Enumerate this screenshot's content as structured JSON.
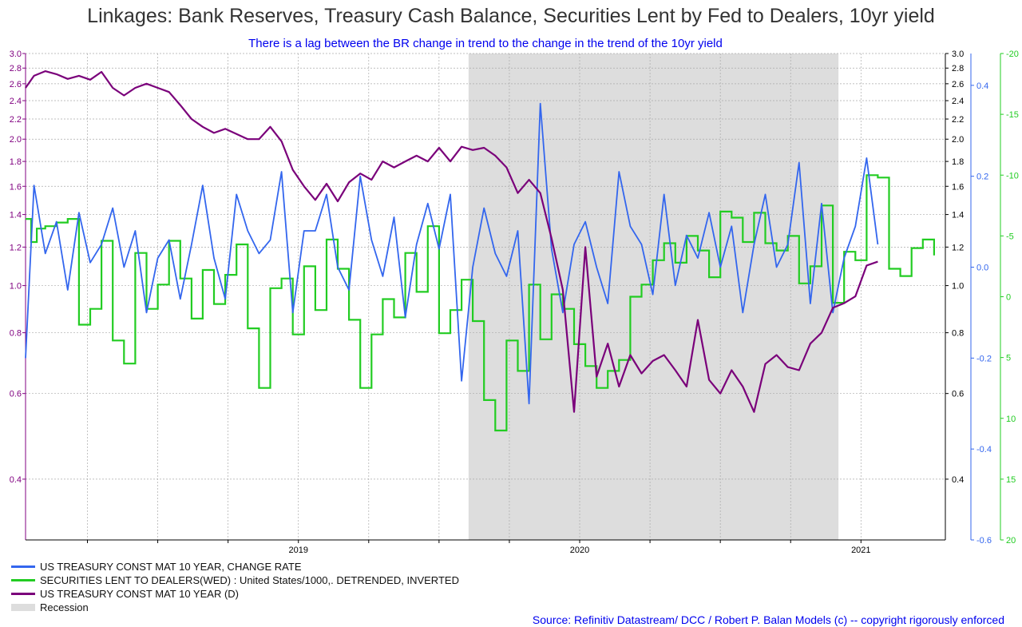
{
  "chart_data": {
    "type": "line",
    "title": "Linkages: Bank Reserves, Treasury Cash Balance, Securities Lent by Fed to Dealers, 10yr yield",
    "subtitle": "There is a lag between the BR change in trend to the change in the trend of the 10yr yield",
    "source": "Source: Refinitiv Datastream/ DCC / Robert P. Balan Models (c) -- copyright rigorously enforced",
    "colors": {
      "change_rate": "#3366ee",
      "securities": "#22cc22",
      "yield": "#7a007a",
      "recession": "#dddddd"
    },
    "x_axis": {
      "ticks": [
        "2019",
        "2020",
        "2021"
      ],
      "range": [
        2018.03,
        2021.3
      ]
    },
    "left_axis": {
      "scale": "log",
      "range": [
        0.3,
        3.0
      ],
      "tick_labels": [
        "3.0",
        "2.8",
        "2.6",
        "2.4",
        "2.2",
        "2.0",
        "1.8",
        "1.6",
        "1.4",
        "1.2",
        "1.0",
        "0.8",
        "0.6",
        "0.4"
      ],
      "tick_values": [
        3.0,
        2.8,
        2.6,
        2.4,
        2.2,
        2.0,
        1.8,
        1.6,
        1.4,
        1.2,
        1.0,
        0.8,
        0.6,
        0.4
      ]
    },
    "right_axis_blue": {
      "range": [
        -0.6,
        0.47
      ],
      "tick_labels": [
        "0.4",
        "0.2",
        "0.0",
        "-0.2",
        "-0.4",
        "-0.6"
      ],
      "tick_values": [
        0.4,
        0.2,
        0.0,
        -0.2,
        -0.4,
        -0.6
      ]
    },
    "right_axis_green": {
      "inverted": true,
      "range": [
        -20,
        20
      ],
      "tick_labels": [
        "-20",
        "-15",
        "-10",
        "-5",
        "0",
        "5",
        "10",
        "15",
        "20"
      ],
      "tick_values": [
        -20,
        -15,
        -10,
        -5,
        0,
        5,
        10,
        15,
        20
      ]
    },
    "recession": {
      "start": 2019.605,
      "end": 2020.92
    },
    "series": [
      {
        "name": "US TREASURY CONST MAT 10 YEAR, CHANGE RATE",
        "axis": "blue",
        "x": [
          2018.03,
          2018.06,
          2018.1,
          2018.14,
          2018.18,
          2018.22,
          2018.26,
          2018.3,
          2018.34,
          2018.38,
          2018.42,
          2018.46,
          2018.5,
          2018.54,
          2018.58,
          2018.62,
          2018.66,
          2018.7,
          2018.74,
          2018.78,
          2018.82,
          2018.86,
          2018.9,
          2018.94,
          2018.98,
          2019.02,
          2019.06,
          2019.1,
          2019.14,
          2019.18,
          2019.22,
          2019.26,
          2019.3,
          2019.34,
          2019.38,
          2019.42,
          2019.46,
          2019.5,
          2019.54,
          2019.58,
          2019.62,
          2019.66,
          2019.7,
          2019.74,
          2019.78,
          2019.82,
          2019.86,
          2019.9,
          2019.94,
          2019.98,
          2020.02,
          2020.06,
          2020.1,
          2020.14,
          2020.18,
          2020.22,
          2020.26,
          2020.3,
          2020.34,
          2020.38,
          2020.42,
          2020.46,
          2020.5,
          2020.54,
          2020.58,
          2020.62,
          2020.66,
          2020.7,
          2020.74,
          2020.78,
          2020.82,
          2020.86,
          2020.9,
          2020.94,
          2020.98,
          2021.02,
          2021.06
        ],
        "values": [
          -0.2,
          0.18,
          0.03,
          0.1,
          -0.05,
          0.12,
          0.01,
          0.05,
          0.13,
          0.0,
          0.08,
          -0.1,
          0.02,
          0.06,
          -0.07,
          0.05,
          0.18,
          0.02,
          -0.07,
          0.16,
          0.08,
          0.03,
          0.06,
          0.21,
          -0.1,
          0.08,
          0.08,
          0.16,
          0.0,
          -0.05,
          0.2,
          0.06,
          -0.02,
          0.11,
          -0.11,
          0.05,
          0.14,
          0.04,
          0.16,
          -0.25,
          0.0,
          0.13,
          0.03,
          -0.02,
          0.08,
          -0.3,
          0.36,
          0.04,
          -0.1,
          0.05,
          0.1,
          0.0,
          -0.08,
          0.21,
          0.09,
          0.05,
          -0.06,
          0.16,
          -0.04,
          0.07,
          0.02,
          0.12,
          0.0,
          0.09,
          -0.1,
          0.05,
          0.16,
          0.0,
          0.05,
          0.23,
          -0.08,
          0.14,
          -0.1,
          0.02,
          0.09,
          0.24,
          0.05
        ]
      },
      {
        "name": "SECURITIES LENT TO DEALERS(WED) : United States/1000,. DETRENDED, INVERTED",
        "axis": "green",
        "x": [
          2018.03,
          2018.05,
          2018.07,
          2018.1,
          2018.14,
          2018.18,
          2018.22,
          2018.26,
          2018.3,
          2018.34,
          2018.38,
          2018.42,
          2018.46,
          2018.5,
          2018.54,
          2018.58,
          2018.62,
          2018.66,
          2018.7,
          2018.74,
          2018.78,
          2018.82,
          2018.86,
          2018.9,
          2018.94,
          2018.98,
          2019.02,
          2019.06,
          2019.1,
          2019.14,
          2019.18,
          2019.22,
          2019.26,
          2019.3,
          2019.34,
          2019.38,
          2019.42,
          2019.46,
          2019.5,
          2019.54,
          2019.58,
          2019.62,
          2019.66,
          2019.7,
          2019.74,
          2019.78,
          2019.82,
          2019.86,
          2019.9,
          2019.94,
          2019.98,
          2020.02,
          2020.06,
          2020.1,
          2020.14,
          2020.18,
          2020.22,
          2020.26,
          2020.3,
          2020.34,
          2020.38,
          2020.42,
          2020.46,
          2020.5,
          2020.54,
          2020.58,
          2020.62,
          2020.66,
          2020.7,
          2020.74,
          2020.78,
          2020.82,
          2020.86,
          2020.9,
          2020.94,
          2020.98,
          2021.02,
          2021.06,
          2021.1,
          2021.14,
          2021.18,
          2021.22,
          2021.26
        ],
        "values": [
          -6.4,
          -4.5,
          -5.6,
          -5.8,
          -6.1,
          -6.4,
          2.3,
          1.0,
          -4.6,
          3.6,
          5.5,
          -3.6,
          1.0,
          -1.0,
          -4.6,
          -1.5,
          1.8,
          -2.2,
          0.6,
          -1.8,
          -4.3,
          2.6,
          7.5,
          -0.7,
          -1.5,
          3.1,
          -2.5,
          1.1,
          -4.7,
          -2.3,
          1.9,
          7.5,
          3.1,
          0.2,
          1.7,
          -3.6,
          -0.4,
          -5.8,
          3.0,
          1.1,
          -1.4,
          2.0,
          8.5,
          11.0,
          3.6,
          6.1,
          -1.0,
          3.5,
          -0.2,
          1.0,
          3.9,
          5.7,
          7.5,
          6.1,
          5.2,
          0.0,
          -1.0,
          -3.0,
          -4.4,
          -2.8,
          -5.0,
          -3.8,
          -1.6,
          -7.0,
          -6.5,
          -4.5,
          -6.9,
          -4.4,
          -3.8,
          -5.0,
          -1.1,
          -2.5,
          -7.5,
          0.5,
          -3.7,
          -3.0,
          -10.0,
          -9.8,
          -2.3,
          -1.7,
          -4.0,
          -4.7,
          -3.4
        ]
      },
      {
        "name": "US TREASURY CONST MAT 10 YEAR (D)",
        "axis": "left",
        "x": [
          2018.03,
          2018.06,
          2018.1,
          2018.14,
          2018.18,
          2018.22,
          2018.26,
          2018.3,
          2018.34,
          2018.38,
          2018.42,
          2018.46,
          2018.5,
          2018.54,
          2018.58,
          2018.62,
          2018.66,
          2018.7,
          2018.74,
          2018.78,
          2018.82,
          2018.86,
          2018.9,
          2018.94,
          2018.98,
          2019.02,
          2019.06,
          2019.1,
          2019.14,
          2019.18,
          2019.22,
          2019.26,
          2019.3,
          2019.34,
          2019.38,
          2019.42,
          2019.46,
          2019.5,
          2019.54,
          2019.58,
          2019.62,
          2019.66,
          2019.7,
          2019.74,
          2019.78,
          2019.82,
          2019.86,
          2019.9,
          2019.94,
          2019.98,
          2020.02,
          2020.06,
          2020.1,
          2020.14,
          2020.18,
          2020.22,
          2020.26,
          2020.3,
          2020.34,
          2020.38,
          2020.42,
          2020.46,
          2020.5,
          2020.54,
          2020.58,
          2020.62,
          2020.66,
          2020.7,
          2020.74,
          2020.78,
          2020.82,
          2020.86,
          2020.9,
          2020.94,
          2020.98,
          2021.02,
          2021.06
        ],
        "values": [
          2.55,
          2.7,
          2.76,
          2.72,
          2.66,
          2.7,
          2.65,
          2.75,
          2.55,
          2.46,
          2.55,
          2.6,
          2.55,
          2.5,
          2.35,
          2.2,
          2.12,
          2.06,
          2.1,
          2.05,
          2.0,
          2.0,
          2.12,
          1.98,
          1.73,
          1.6,
          1.5,
          1.62,
          1.49,
          1.63,
          1.7,
          1.65,
          1.8,
          1.75,
          1.8,
          1.85,
          1.8,
          1.92,
          1.8,
          1.93,
          1.9,
          1.92,
          1.85,
          1.75,
          1.55,
          1.65,
          1.55,
          1.25,
          0.98,
          0.55,
          1.2,
          0.65,
          0.76,
          0.62,
          0.72,
          0.66,
          0.7,
          0.72,
          0.67,
          0.62,
          0.85,
          0.64,
          0.6,
          0.67,
          0.62,
          0.55,
          0.69,
          0.72,
          0.68,
          0.67,
          0.76,
          0.8,
          0.9,
          0.92,
          0.95,
          1.1,
          1.12
        ]
      }
    ]
  },
  "legend": {
    "items": [
      {
        "label": "US TREASURY CONST MAT 10 YEAR, CHANGE RATE",
        "color": "#3366ee"
      },
      {
        "label": "SECURITIES LENT TO DEALERS(WED) : United States/1000,. DETRENDED, INVERTED",
        "color": "#22cc22"
      },
      {
        "label": "US TREASURY CONST MAT 10 YEAR (D)",
        "color": "#7a007a"
      }
    ],
    "recession_label": "Recession"
  }
}
